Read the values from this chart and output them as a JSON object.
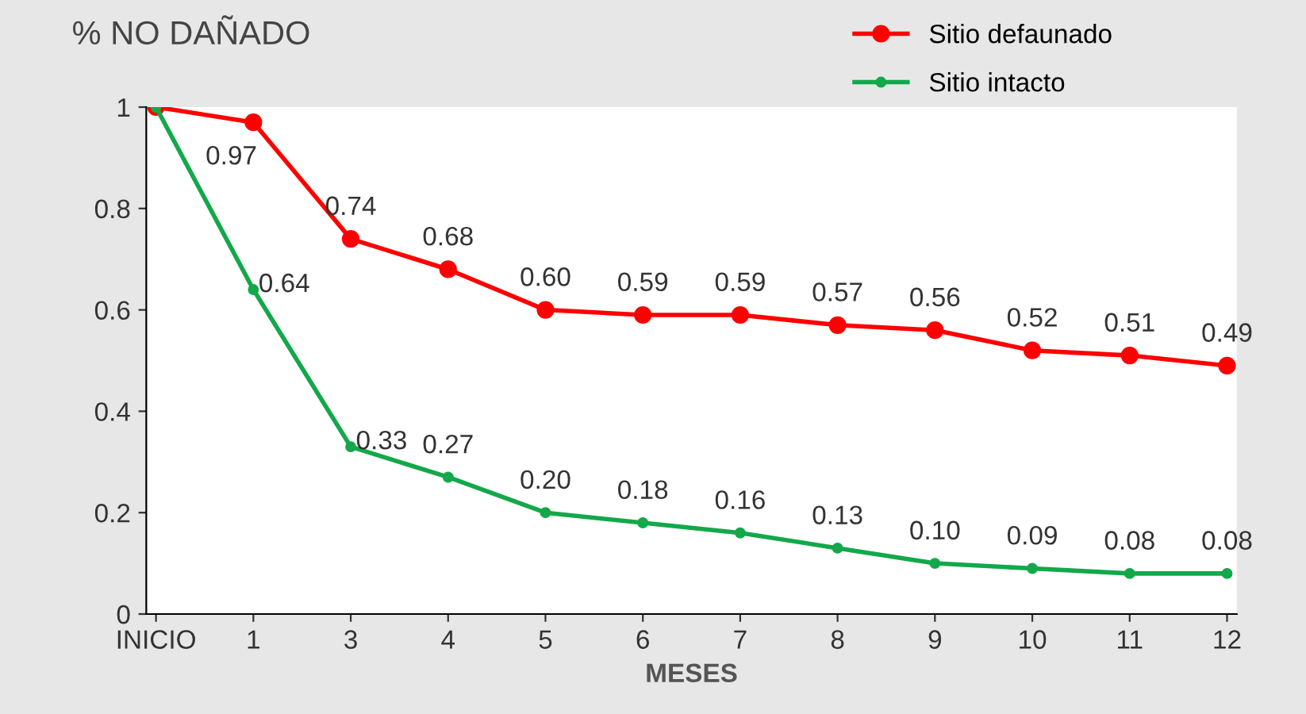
{
  "chart_data": {
    "type": "line",
    "ylabel": "% NO DAÑADO",
    "xlabel": "MESES",
    "categories": [
      "INICIO",
      "1",
      "3",
      "4",
      "5",
      "6",
      "7",
      "8",
      "9",
      "10",
      "11",
      "12"
    ],
    "series": [
      {
        "name": "Sitio defaunado",
        "color": "#ff0000",
        "values": [
          1,
          0.97,
          0.74,
          0.68,
          0.6,
          0.59,
          0.59,
          0.57,
          0.56,
          0.52,
          0.51,
          0.49
        ],
        "value_labels": [
          null,
          "0.97",
          "0.74",
          "0.68",
          "0.60",
          "0.59",
          "0.59",
          "0.57",
          "0.56",
          "0.52",
          "0.51",
          "0.49"
        ]
      },
      {
        "name": "Sitio intacto",
        "color": "#13a84a",
        "values": [
          1,
          0.64,
          0.33,
          0.27,
          0.2,
          0.18,
          0.16,
          0.13,
          0.1,
          0.09,
          0.08,
          0.08
        ],
        "value_labels": [
          null,
          "0.64",
          "0.33",
          "0.27",
          "0.20",
          "0.18",
          "0.16",
          "0.13",
          "0.10",
          "0.09",
          "0.08",
          "0.08"
        ]
      }
    ],
    "ylim": [
      0,
      1
    ],
    "yticks": [
      0,
      0.2,
      0.4,
      0.6,
      0.8,
      1
    ],
    "grid": false,
    "legend": "top right",
    "marker": "circle",
    "line_style": "solid"
  }
}
